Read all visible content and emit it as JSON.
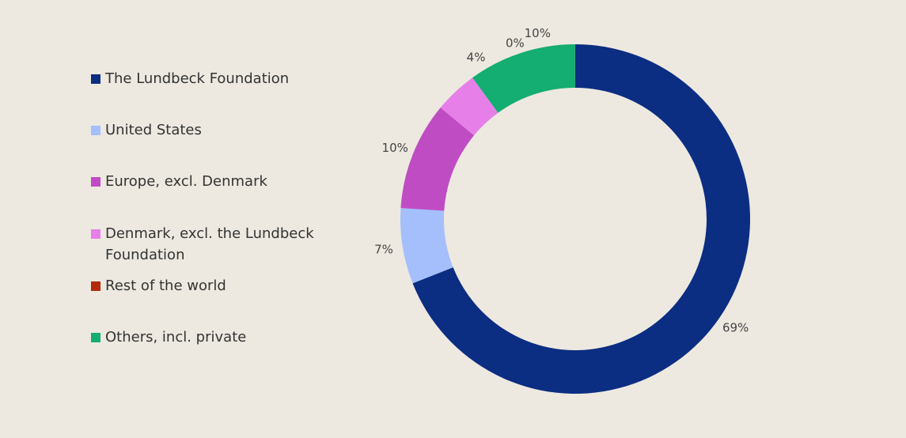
{
  "chart_data": {
    "type": "pie",
    "donut": true,
    "legend_position": "left",
    "series": [
      {
        "name": "The Lundbeck Foundation",
        "value": 69,
        "label": "69%",
        "color": "#0b2d82"
      },
      {
        "name": "United States",
        "value": 7,
        "label": "7%",
        "color": "#a5bffc"
      },
      {
        "name": "Europe, excl. Denmark",
        "value": 10,
        "label": "10%",
        "color": "#c04cc4"
      },
      {
        "name": "Denmark, excl. the Lundbeck Foundation",
        "value": 4,
        "label": "4%",
        "color": "#e680e8"
      },
      {
        "name": "Rest of the world",
        "value": 0,
        "label": "0%",
        "color": "#b5290c"
      },
      {
        "name": "Others, incl. private",
        "value": 10,
        "label": "10%",
        "color": "#14ad72"
      }
    ]
  }
}
